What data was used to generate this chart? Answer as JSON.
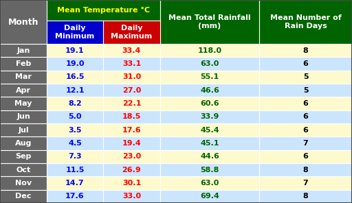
{
  "months": [
    "Jan",
    "Feb",
    "Mar",
    "Apr",
    "May",
    "Jun",
    "Jul",
    "Aug",
    "Sep",
    "Oct",
    "Nov",
    "Dec"
  ],
  "daily_min": [
    19.1,
    19.0,
    16.5,
    12.1,
    8.2,
    5.0,
    3.5,
    4.5,
    7.3,
    11.5,
    14.7,
    17.6
  ],
  "daily_max": [
    33.4,
    33.1,
    31.0,
    27.0,
    22.1,
    18.5,
    17.6,
    19.4,
    23.0,
    26.9,
    30.1,
    33.0
  ],
  "rainfall": [
    118.0,
    63.0,
    55.1,
    46.6,
    60.6,
    33.9,
    45.4,
    45.1,
    44.6,
    58.8,
    63.0,
    69.4
  ],
  "rain_days": [
    8,
    6,
    5,
    5,
    6,
    6,
    6,
    7,
    6,
    8,
    7,
    8
  ],
  "header_bg": "#006400",
  "header_text_temp": "#FFFF00",
  "min_col_bg": "#0000CC",
  "max_col_bg": "#CC0000",
  "month_col_bg": "#666666",
  "row_bg_odd": "#FFFACD",
  "row_bg_even": "#CCE5FF",
  "min_text_color": "#0000FF",
  "max_text_color": "#FF0000",
  "rainfall_text_color": "#006400",
  "rain_days_text_color": "#000000",
  "month_text_color": "#FFFFFF",
  "fig_width": 5.12,
  "fig_height": 2.96,
  "dpi": 100
}
